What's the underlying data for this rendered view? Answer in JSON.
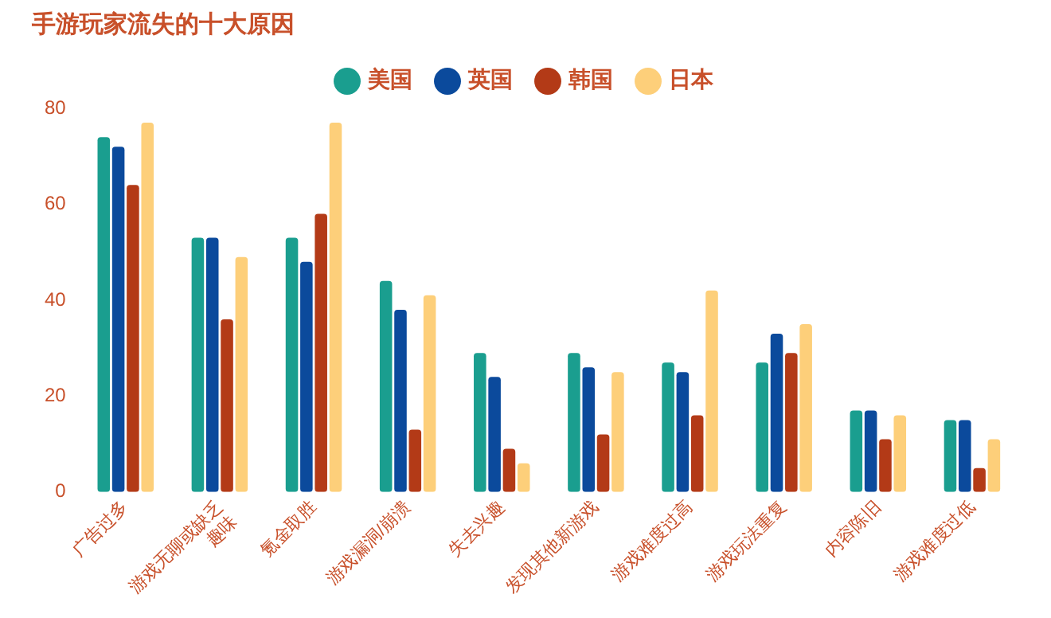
{
  "chart_data": {
    "type": "bar",
    "title": "手游玩家流失的十大原因",
    "categories": [
      "广告过多",
      "游戏无聊或缺乏\n趣味",
      "氪金取胜",
      "游戏漏洞/崩溃",
      "失去兴趣",
      "发现其他新游戏",
      "游戏难度过高",
      "游戏玩法重复",
      "内容陈旧",
      "游戏难度过低"
    ],
    "series": [
      {
        "name": "美国",
        "color": "#1a9e8f",
        "values": [
          74,
          53,
          53,
          44,
          29,
          29,
          27,
          27,
          17,
          15
        ]
      },
      {
        "name": "英国",
        "color": "#0b4a9c",
        "values": [
          72,
          53,
          48,
          38,
          24,
          26,
          25,
          33,
          17,
          15
        ]
      },
      {
        "name": "韩国",
        "color": "#b33a17",
        "values": [
          64,
          36,
          58,
          13,
          9,
          12,
          16,
          29,
          11,
          5
        ]
      },
      {
        "name": "日本",
        "color": "#fdcf7a",
        "values": [
          77,
          49,
          77,
          41,
          6,
          25,
          42,
          35,
          16,
          11
        ]
      }
    ],
    "ylim": [
      0,
      80
    ],
    "yticks": [
      0,
      20,
      40,
      60,
      80
    ],
    "grid": false,
    "legend": "top"
  }
}
